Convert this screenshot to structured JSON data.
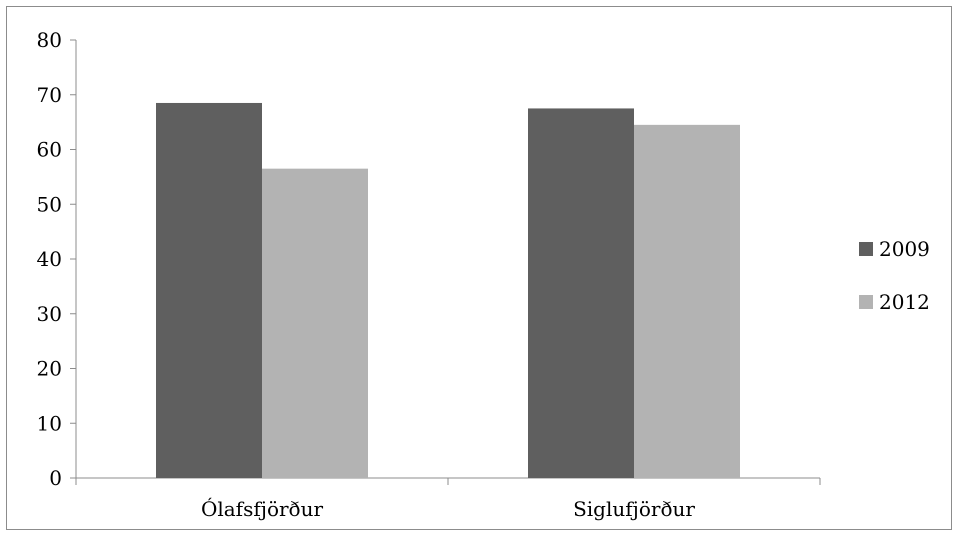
{
  "chart_data": {
    "type": "bar",
    "categories": [
      "Ólafsfjörður",
      "Siglufjörður"
    ],
    "series": [
      {
        "name": "2009",
        "values": [
          68.5,
          67.5
        ],
        "color": "#5f5f5f"
      },
      {
        "name": "2012",
        "values": [
          56.5,
          64.5
        ],
        "color": "#b3b3b3"
      }
    ],
    "title": "",
    "xlabel": "",
    "ylabel": "",
    "ylim": [
      0,
      80
    ],
    "yticks": [
      0,
      10,
      20,
      30,
      40,
      50,
      60,
      70,
      80
    ],
    "grid": false,
    "legend_position": "right"
  }
}
